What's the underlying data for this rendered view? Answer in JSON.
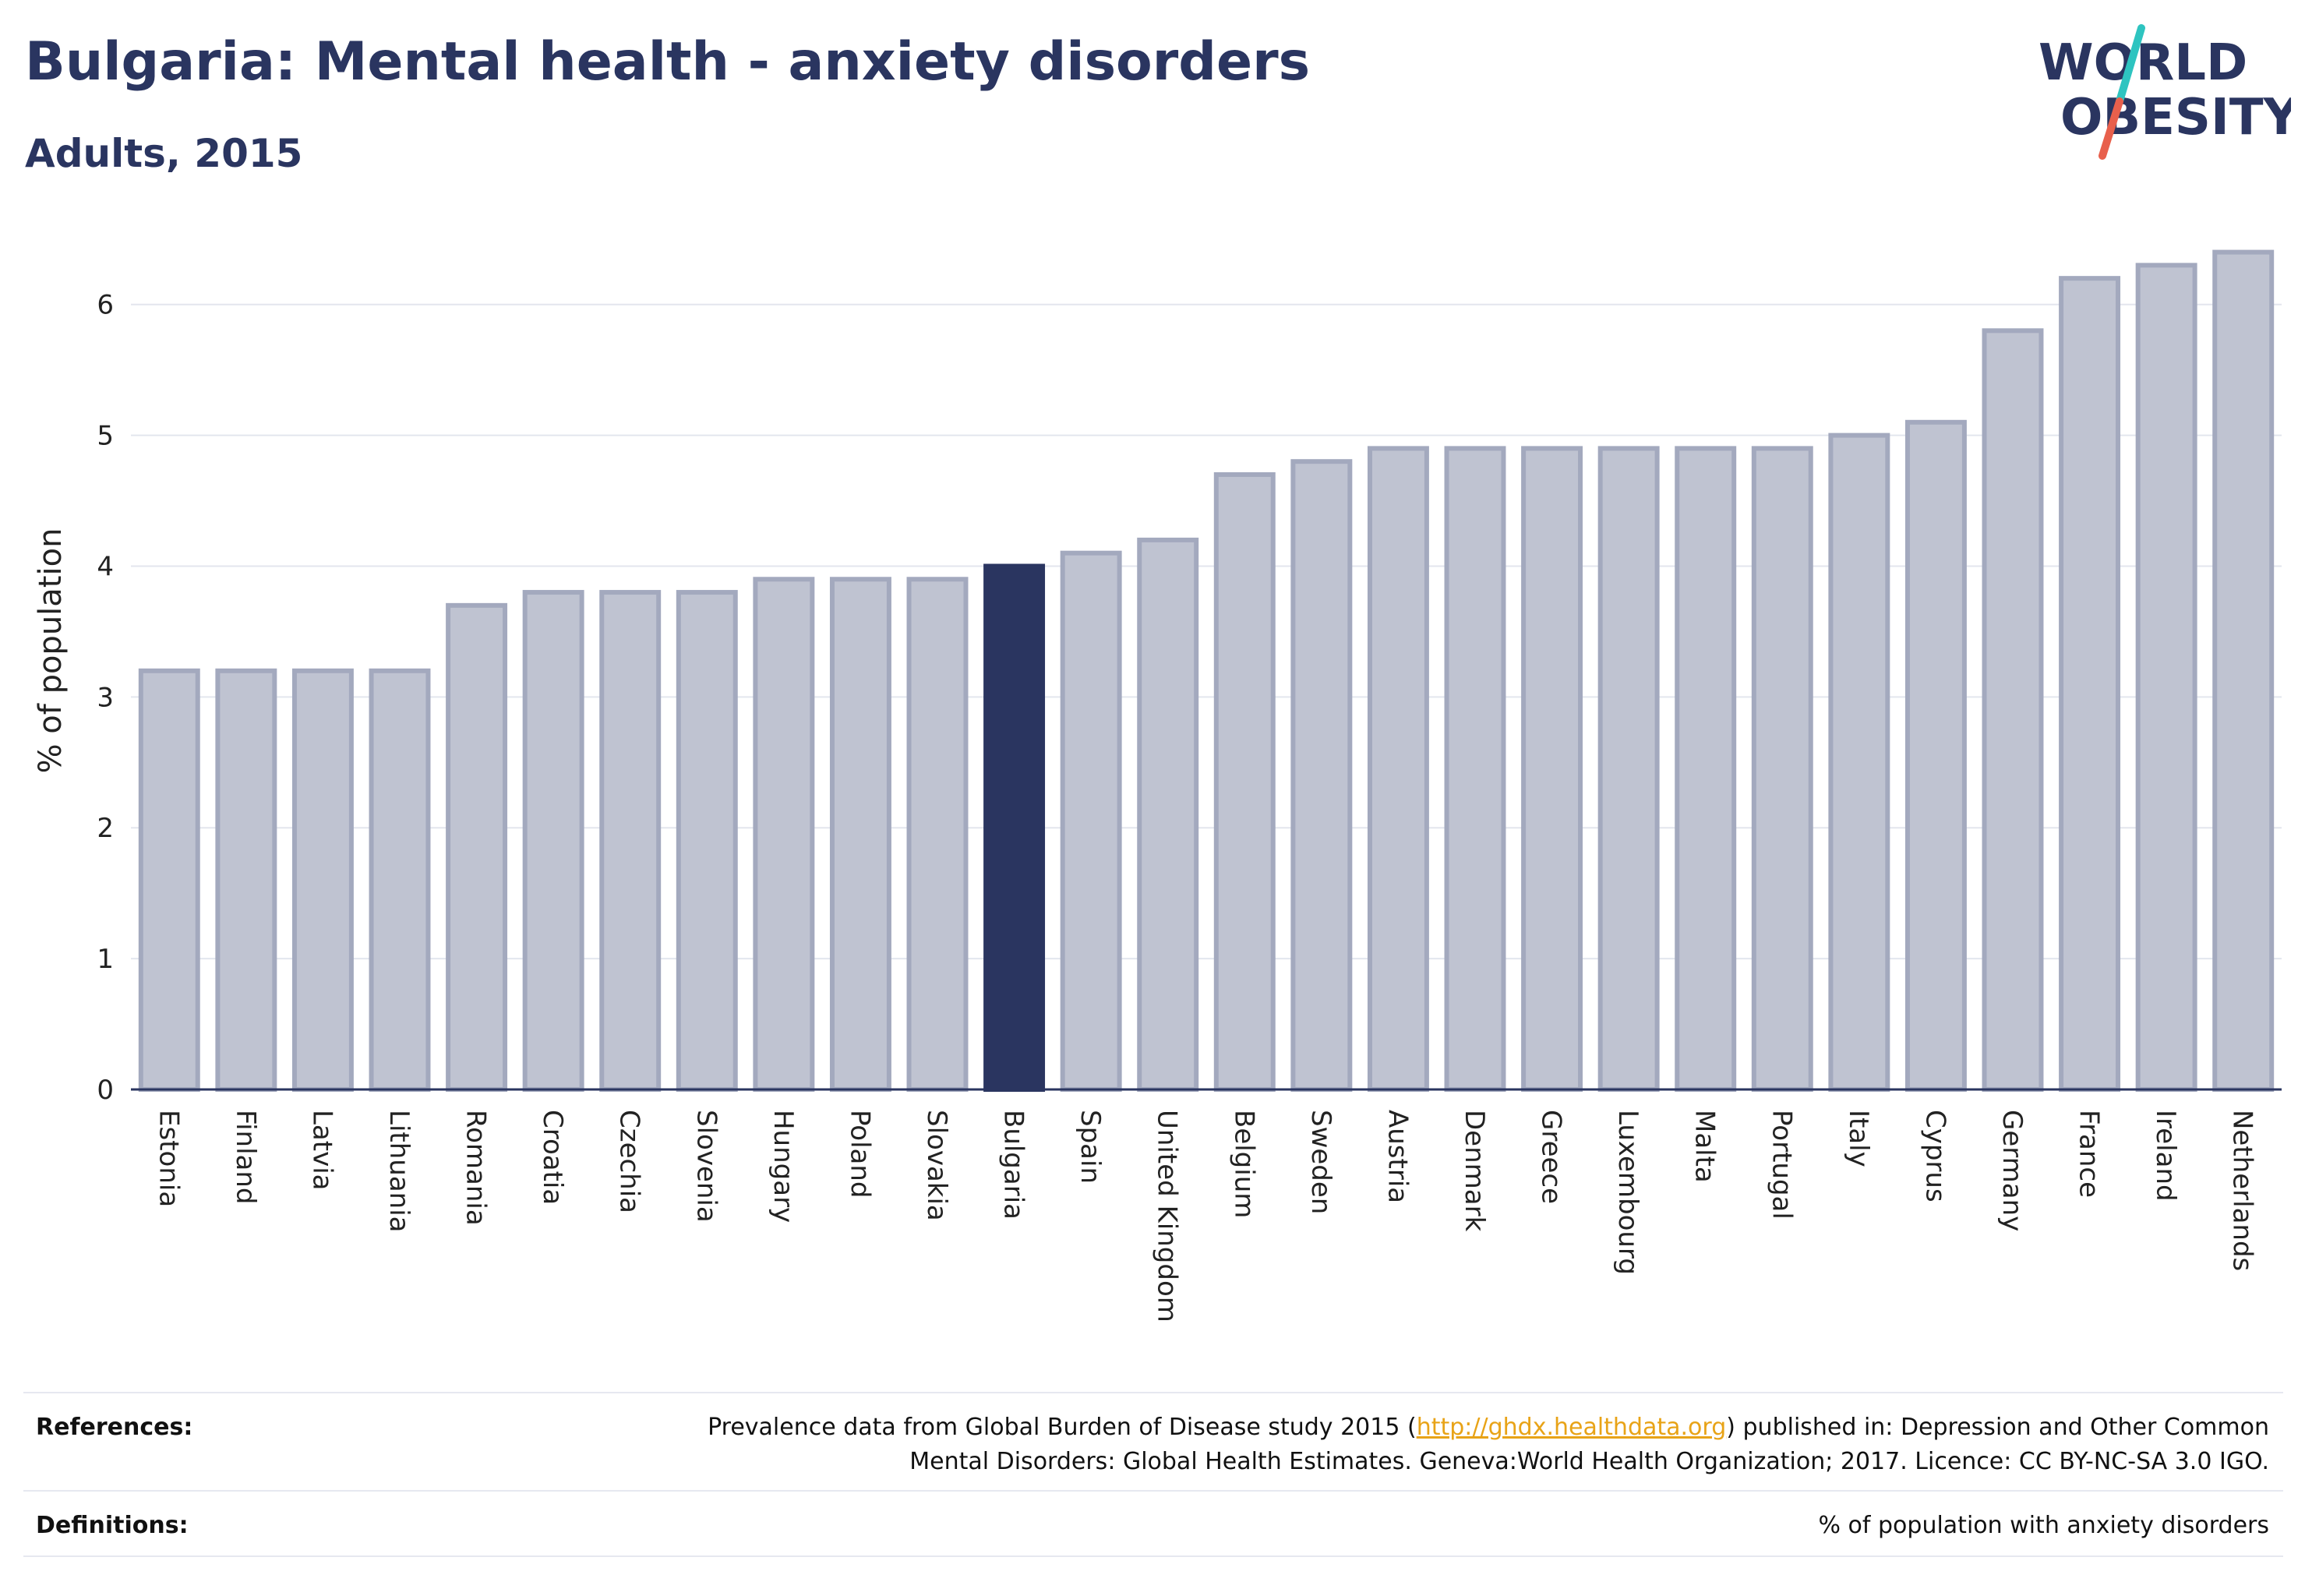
{
  "header": {
    "title": "Bulgaria: Mental health - anxiety disorders",
    "subtitle": "Adults, 2015"
  },
  "logo": {
    "line1": "WORLD",
    "line2": "OBESITY",
    "colors": {
      "text": "#2a3560",
      "slash_top": "#2ec4c0",
      "slash_bottom": "#e8604c"
    }
  },
  "chart_data": {
    "type": "bar",
    "title": "Bulgaria: Mental health - anxiety disorders",
    "subtitle": "Adults, 2015",
    "xlabel": "",
    "ylabel": "% of population",
    "ylim": [
      0,
      6.6
    ],
    "yticks": [
      0,
      1,
      2,
      3,
      4,
      5,
      6
    ],
    "grid": true,
    "highlight": "Bulgaria",
    "colors": {
      "bar": "#bfc3d1",
      "bar_edge": "#a3a9be",
      "highlight": "#2a3560",
      "grid": "#e3e6ee",
      "axis": "#2a3560"
    },
    "categories": [
      "Estonia",
      "Finland",
      "Latvia",
      "Lithuania",
      "Romania",
      "Croatia",
      "Czechia",
      "Slovenia",
      "Hungary",
      "Poland",
      "Slovakia",
      "Bulgaria",
      "Spain",
      "United Kingdom",
      "Belgium",
      "Sweden",
      "Austria",
      "Denmark",
      "Greece",
      "Luxembourg",
      "Malta",
      "Portugal",
      "Italy",
      "Cyprus",
      "Germany",
      "France",
      "Ireland",
      "Netherlands"
    ],
    "values": [
      3.2,
      3.2,
      3.2,
      3.2,
      3.7,
      3.8,
      3.8,
      3.8,
      3.9,
      3.9,
      3.9,
      4.0,
      4.1,
      4.2,
      4.7,
      4.8,
      4.9,
      4.9,
      4.9,
      4.9,
      4.9,
      4.9,
      5.0,
      5.1,
      5.8,
      6.2,
      6.3,
      6.4
    ]
  },
  "footer": {
    "references_label": "References:",
    "references_text_1": "Prevalence data from Global Burden of Disease study 2015 (",
    "references_link": "http://ghdx.healthdata.org",
    "references_text_2": ") published in: Depression and Other Common",
    "references_text_3": "Mental Disorders: Global Health Estimates. Geneva:World Health Organization; 2017. Licence: CC BY-NC-SA 3.0 IGO.",
    "definitions_label": "Definitions:",
    "definitions_text": "% of population with anxiety disorders"
  }
}
